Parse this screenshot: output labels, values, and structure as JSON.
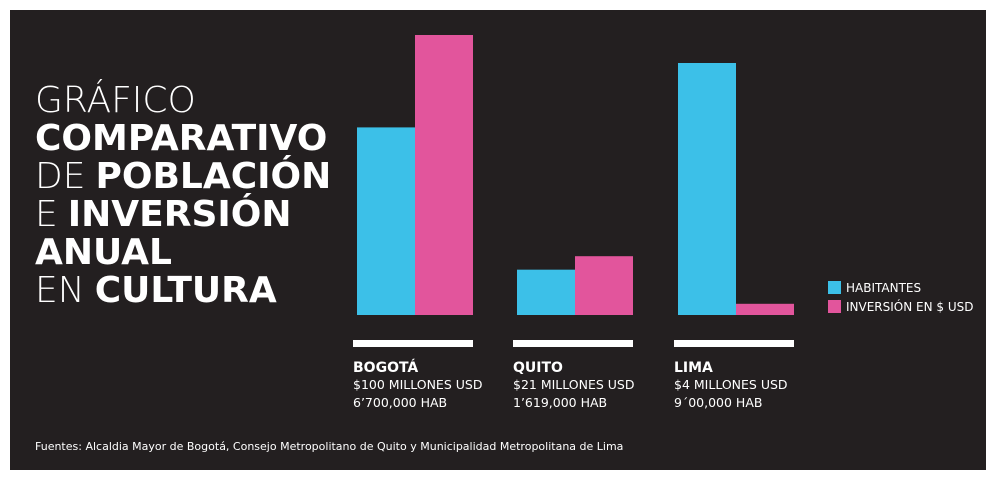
{
  "chart_data": {
    "type": "bar",
    "title_lines": [
      [
        {
          "text": "GRÁFICO",
          "bold": false
        }
      ],
      [
        {
          "text": "COMPARATIVO",
          "bold": true
        }
      ],
      [
        {
          "text": "DE",
          "bold": false
        },
        {
          "text": "POBLACIÓN",
          "bold": true
        }
      ],
      [
        {
          "text": "E",
          "bold": false
        },
        {
          "text": "INVERSIÓN",
          "bold": true
        }
      ],
      [
        {
          "text": "ANUAL",
          "bold": true
        }
      ],
      [
        {
          "text": "EN",
          "bold": false
        },
        {
          "text": "CULTURA",
          "bold": true
        }
      ]
    ],
    "categories": [
      "BOGOTÁ",
      "QUITO",
      "LIMA"
    ],
    "series": [
      {
        "name": "HABITANTES",
        "color": "#3cc0e8",
        "values": [
          6700000,
          1619000,
          9000000
        ],
        "value_labels": [
          "6’700,000 HAB",
          "1’619,000 HAB",
          "9´00,000 HAB"
        ]
      },
      {
        "name": "INVERSIÓN EN $ USD",
        "color": "#e2559c",
        "axis": "y2",
        "values": [
          100,
          21,
          4
        ],
        "value_labels": [
          "$100 MILLONES USD",
          "$21 MILLONES USD",
          "$4 MILLONES USD"
        ]
      }
    ],
    "ylim": [
      0,
      10000000
    ],
    "y2lim": [
      0,
      100
    ],
    "source": "Fuentes:  Alcaldia Mayor de Bogotá, Consejo Metropolitano de Quito y Municipalidad Metropolitana de Lima"
  }
}
